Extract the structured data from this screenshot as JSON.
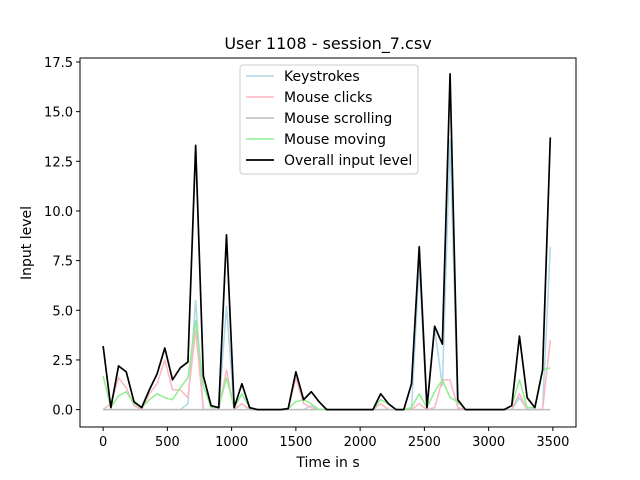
{
  "chart_data": {
    "type": "line",
    "title": "User 1108 - session_7.csv",
    "xlabel": "Time in s",
    "ylabel": "Input level",
    "xlim": [
      -180,
      3680
    ],
    "ylim": [
      -0.875,
      17.7
    ],
    "xticks": [
      0,
      500,
      1000,
      1500,
      2000,
      2500,
      3000,
      3500
    ],
    "yticks": [
      0.0,
      2.5,
      5.0,
      7.5,
      10.0,
      12.5,
      15.0,
      17.5
    ],
    "xtick_labels": [
      "0",
      "500",
      "1000",
      "1500",
      "2000",
      "2500",
      "3000",
      "3500"
    ],
    "ytick_labels": [
      "0.0",
      "2.5",
      "5.0",
      "7.5",
      "10.0",
      "12.5",
      "15.0",
      "17.5"
    ],
    "grid": false,
    "legend_position": "top-center",
    "x": [
      0,
      60,
      120,
      180,
      240,
      300,
      360,
      420,
      480,
      540,
      600,
      660,
      720,
      780,
      840,
      900,
      960,
      1020,
      1080,
      1140,
      1200,
      1260,
      1320,
      1380,
      1440,
      1500,
      1560,
      1620,
      1680,
      1740,
      1800,
      1860,
      1920,
      1980,
      2040,
      2100,
      2160,
      2220,
      2280,
      2340,
      2400,
      2460,
      2520,
      2580,
      2640,
      2700,
      2760,
      2820,
      2880,
      2940,
      3000,
      3060,
      3120,
      3180,
      3240,
      3300,
      3360,
      3420,
      3480
    ],
    "series": [
      {
        "name": "Keystrokes",
        "color": "#add8e6",
        "values": [
          0,
          0,
          0,
          0,
          0,
          0,
          0,
          0,
          0,
          0,
          0,
          0.3,
          5.5,
          0,
          0,
          0,
          5.2,
          0,
          0.3,
          0,
          0,
          0,
          0,
          0,
          0,
          0,
          0,
          0.2,
          0,
          0,
          0,
          0,
          0,
          0,
          0,
          0,
          0,
          0,
          0,
          0,
          0,
          7.3,
          0,
          4.1,
          1.2,
          13.6,
          0,
          0,
          0,
          0,
          0,
          0,
          0,
          0,
          0.6,
          0,
          0,
          0,
          8.2
        ]
      },
      {
        "name": "Mouse clicks",
        "color": "#ffb6c1",
        "values": [
          0,
          0.3,
          1.6,
          1.1,
          0.2,
          0,
          0.8,
          1.3,
          2.5,
          1.0,
          1.0,
          0.6,
          4.0,
          0,
          0,
          0,
          2.0,
          0,
          0.3,
          0,
          0,
          0,
          0,
          0,
          0,
          1.6,
          0.3,
          0.1,
          0,
          0,
          0,
          0,
          0,
          0,
          0,
          0,
          0.3,
          0,
          0,
          0,
          0,
          0.3,
          0,
          0.1,
          1.5,
          1.5,
          0.1,
          0,
          0,
          0,
          0,
          0,
          0,
          0,
          0.8,
          0,
          0,
          0,
          3.5
        ]
      },
      {
        "name": "Mouse scrolling",
        "color": "#bebebe",
        "values": [
          0,
          0,
          0,
          0,
          0,
          0,
          0,
          0,
          0,
          0,
          0,
          0,
          0,
          0,
          0,
          0,
          0,
          0,
          0,
          0,
          0,
          0,
          0,
          0,
          0,
          0,
          0,
          0,
          0,
          0,
          0,
          0,
          0,
          0,
          0,
          0,
          0,
          0,
          0,
          0,
          0,
          0,
          0,
          0,
          0,
          0,
          0,
          0,
          0,
          0,
          0,
          0,
          0,
          0,
          0,
          0,
          0,
          0,
          0
        ]
      },
      {
        "name": "Mouse moving",
        "color": "#90ee90",
        "values": [
          1.7,
          0.1,
          0.7,
          0.9,
          0.3,
          0.1,
          0.5,
          0.8,
          0.6,
          0.5,
          1.1,
          1.6,
          4.5,
          1.2,
          0.1,
          0.1,
          1.6,
          0.1,
          0.8,
          0.1,
          0,
          0,
          0,
          0,
          0.05,
          0.4,
          0.5,
          0.3,
          0,
          0,
          0,
          0,
          0,
          0,
          0,
          0,
          0.5,
          0.3,
          0,
          0,
          0.1,
          0.8,
          0.1,
          0.9,
          1.5,
          0.6,
          0.4,
          0,
          0,
          0,
          0,
          0,
          0,
          0.2,
          1.5,
          0.1,
          0.1,
          2.0,
          2.1
        ]
      },
      {
        "name": "Overall input level",
        "color": "#000000",
        "values": [
          3.2,
          0.1,
          2.2,
          1.9,
          0.4,
          0.1,
          1.0,
          1.8,
          3.1,
          1.5,
          2.1,
          2.4,
          13.3,
          1.7,
          0.2,
          0.1,
          8.8,
          0.1,
          1.3,
          0.1,
          0,
          0,
          0,
          0,
          0.05,
          1.9,
          0.5,
          0.9,
          0.4,
          0,
          0,
          0,
          0,
          0,
          0,
          0,
          0.8,
          0.3,
          0,
          0,
          1.3,
          8.2,
          0.1,
          4.2,
          3.3,
          16.9,
          0.5,
          0,
          0,
          0,
          0,
          0,
          0,
          0.2,
          3.7,
          0.6,
          0.1,
          2.0,
          13.7
        ]
      }
    ]
  }
}
